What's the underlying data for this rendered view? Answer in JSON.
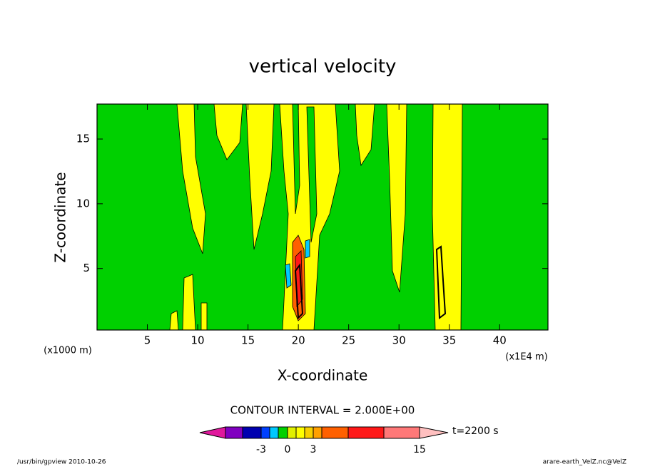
{
  "chart_data": {
    "type": "contour",
    "title": "vertical velocity",
    "x_label": "X-coordinate",
    "y_label": "Z-coordinate",
    "y_unit_label": "(x1000 m)",
    "x_unit_label": "(x1E4 m)",
    "xlim": [
      0,
      44.8
    ],
    "xticks": [
      5,
      10,
      15,
      20,
      25,
      30,
      35,
      40
    ],
    "ylim": [
      0.25,
      17.7
    ],
    "yticks": [
      5,
      10,
      15
    ],
    "contour_interval_label": "CONTOUR INTERVAL = 2.000E+00",
    "time_label": "t=2200 s",
    "colorbar": {
      "bounds": [
        null,
        null,
        -3,
        null,
        null,
        0,
        null,
        null,
        3,
        null,
        null,
        null,
        15
      ],
      "colors": [
        "#e0189c",
        "#8000c0",
        "#0000b0",
        "#0040ff",
        "#00c8ff",
        "#00d000",
        "#e0f000",
        "#ffff00",
        "#f8d000",
        "#ffa000",
        "#ff6000",
        "#ff1818",
        "#ff7878",
        "#ffc0c0"
      ]
    },
    "footer_left": "/usr/bin/gpview  2010-10-26",
    "footer_right": "arare-earth_VelZ.nc@VelZ"
  }
}
